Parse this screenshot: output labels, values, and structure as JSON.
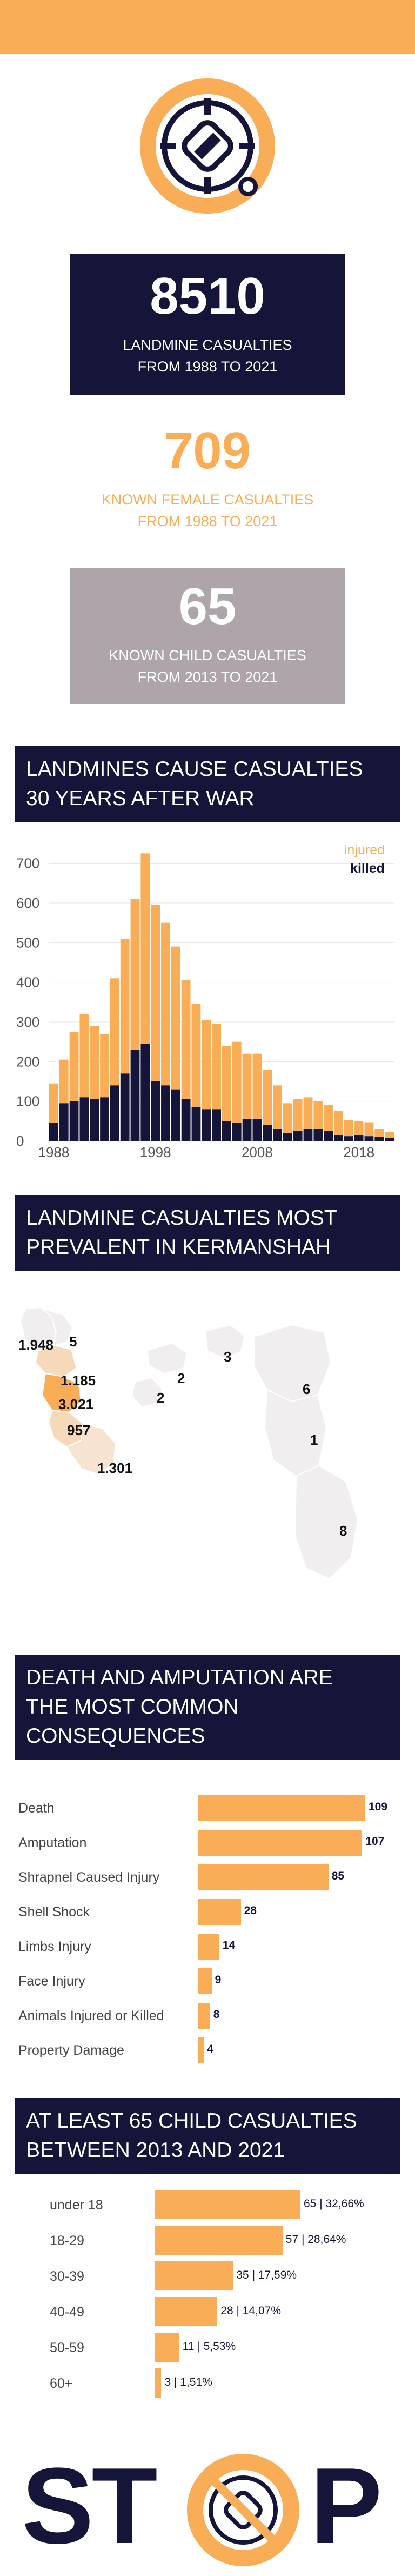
{
  "stats": [
    {
      "value": "8510",
      "line1": "LANDMINE CASUALTIES",
      "line2": "FROM 1988 TO 2021"
    },
    {
      "value": "709",
      "line1": "KNOWN FEMALE CASUALTIES",
      "line2": "FROM 1988 TO 2021"
    },
    {
      "value": "65",
      "line1": "KNOWN CHILD CASUALTIES",
      "line2": "FROM 2013 TO 2021"
    }
  ],
  "sections": {
    "timeline": {
      "line1": "LANDMINES CAUSE CASUALTIES",
      "line2": "30 YEARS AFTER WAR"
    },
    "map": {
      "line1": "LANDMINE CASUALTIES MOST",
      "line2": "PREVALENT IN KERMANSHAH"
    },
    "consequences": {
      "line1": "DEATH AND AMPUTATION ARE",
      "line2": "THE MOST COMMON",
      "line3": "CONSEQUENCES"
    },
    "children": {
      "line1": "AT LEAST 65 CHILD CASUALTIES",
      "line2": "BETWEEN 2013 AND 2021"
    }
  },
  "map_labels": [
    "1.948",
    "5",
    "1.185",
    "3.021",
    "957",
    "1.301",
    "2",
    "2",
    "3",
    "6",
    "1",
    "8"
  ],
  "footer": {
    "text_left": "ST",
    "text_right": "P"
  },
  "colors": {
    "orange": "#f9ad57",
    "navy": "#15153a",
    "grey": "#ada5aa",
    "map_light": "#f0eeee",
    "map_mid": "#f6d9b8"
  },
  "chart_data": [
    {
      "type": "bar",
      "stacked": true,
      "x": [
        1988,
        1989,
        1990,
        1991,
        1992,
        1993,
        1994,
        1995,
        1996,
        1997,
        1998,
        1999,
        2000,
        2001,
        2002,
        2003,
        2004,
        2005,
        2006,
        2007,
        2008,
        2009,
        2010,
        2011,
        2012,
        2013,
        2014,
        2015,
        2016,
        2017,
        2018,
        2019,
        2020,
        2021
      ],
      "series": [
        {
          "name": "killed",
          "color": "#15153a",
          "values": [
            45,
            95,
            100,
            110,
            105,
            110,
            140,
            170,
            230,
            245,
            150,
            140,
            130,
            105,
            85,
            80,
            80,
            50,
            45,
            55,
            55,
            40,
            30,
            20,
            25,
            30,
            30,
            25,
            15,
            12,
            15,
            12,
            10,
            8
          ]
        },
        {
          "name": "injured",
          "color": "#f9ad57",
          "values": [
            100,
            110,
            175,
            210,
            185,
            160,
            270,
            340,
            380,
            480,
            445,
            410,
            360,
            300,
            260,
            225,
            215,
            190,
            205,
            165,
            165,
            140,
            110,
            75,
            80,
            80,
            70,
            65,
            60,
            40,
            35,
            35,
            20,
            15
          ]
        }
      ],
      "xticks": [
        "1988",
        "1998",
        "2008",
        "2018"
      ],
      "yticks": [
        "0",
        "100",
        "200",
        "300",
        "400",
        "500",
        "600",
        "700"
      ],
      "ylim": [
        0,
        750
      ],
      "legend_position": "top-right"
    },
    {
      "type": "bar",
      "orientation": "horizontal",
      "categories": [
        "Death",
        "Amputation",
        "Shrapnel Caused Injury",
        "Shell Shock",
        "Limbs Injury",
        "Face Injury",
        "Animals Injured or Killed",
        "Property Damage"
      ],
      "values": [
        109,
        107,
        85,
        28,
        14,
        9,
        8,
        4
      ],
      "labels": [
        "109",
        "107",
        "85",
        "28",
        "14",
        "9",
        "8",
        "4"
      ],
      "max": 109
    },
    {
      "type": "bar",
      "orientation": "horizontal",
      "categories": [
        "under 18",
        "18-29",
        "30-39",
        "40-49",
        "50-59",
        "60+"
      ],
      "values": [
        65,
        57,
        35,
        28,
        11,
        3
      ],
      "labels": [
        "65 | 32,66%",
        "57 | 28,64%",
        "35 | 17,59%",
        "28 | 14,07%",
        "11 | 5,53%",
        "3 | 1,51%"
      ],
      "max": 65
    }
  ]
}
